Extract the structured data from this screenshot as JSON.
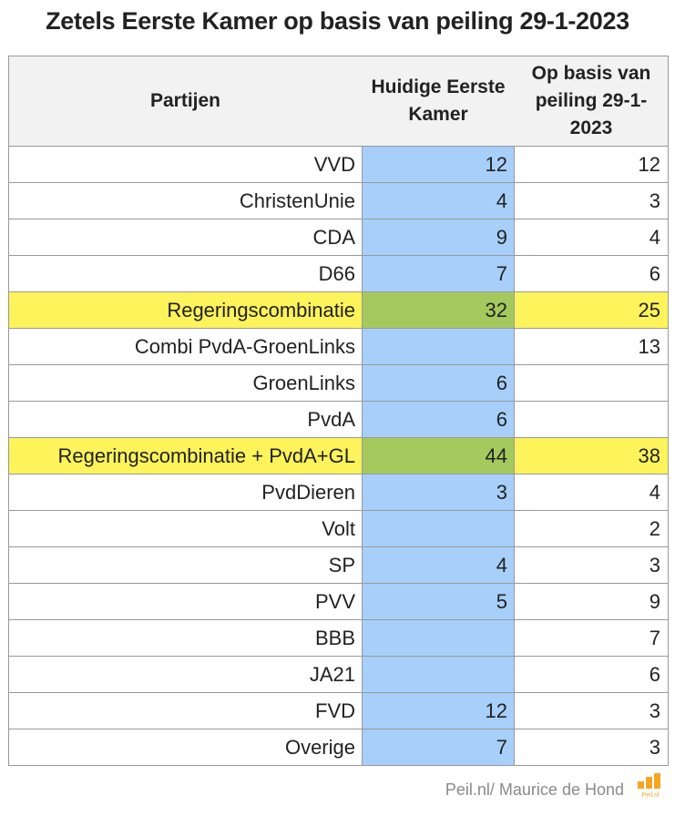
{
  "title": "Zetels Eerste Kamer op basis van peiling 29-1-2023",
  "colors": {
    "current_column": "#a7cffa",
    "highlight_row": "#fdf35a",
    "highlight_current": "#a6c95e",
    "logo_orange": "#f5a623"
  },
  "footer": {
    "credit": "Peil.nl/ Maurice de Hond",
    "logo_text": "Peil.nl"
  },
  "chart_data": {
    "type": "table",
    "title": "Zetels Eerste Kamer op basis van peiling 29-1-2023",
    "columns": [
      "Partijen",
      "Huidige Eerste Kamer",
      "Op basis van peiling 29-1-2023"
    ],
    "rows": [
      {
        "party": "VVD",
        "current": "12",
        "poll": "12",
        "highlight": false
      },
      {
        "party": "ChristenUnie",
        "current": "4",
        "poll": "3",
        "highlight": false
      },
      {
        "party": "CDA",
        "current": "9",
        "poll": "4",
        "highlight": false
      },
      {
        "party": "D66",
        "current": "7",
        "poll": "6",
        "highlight": false
      },
      {
        "party": "Regeringscombinatie",
        "current": "32",
        "poll": "25",
        "highlight": true
      },
      {
        "party": "Combi PvdA-GroenLinks",
        "current": "",
        "poll": "13",
        "highlight": false
      },
      {
        "party": "GroenLinks",
        "current": "6",
        "poll": "",
        "highlight": false
      },
      {
        "party": "PvdA",
        "current": "6",
        "poll": "",
        "highlight": false
      },
      {
        "party": "Regeringscombinatie + PvdA+GL",
        "current": "44",
        "poll": "38",
        "highlight": true
      },
      {
        "party": "PvdDieren",
        "current": "3",
        "poll": "4",
        "highlight": false
      },
      {
        "party": "Volt",
        "current": "",
        "poll": "2",
        "highlight": false
      },
      {
        "party": "SP",
        "current": "4",
        "poll": "3",
        "highlight": false
      },
      {
        "party": "PVV",
        "current": "5",
        "poll": "9",
        "highlight": false
      },
      {
        "party": "BBB",
        "current": "",
        "poll": "7",
        "highlight": false
      },
      {
        "party": "JA21",
        "current": "",
        "poll": "6",
        "highlight": false
      },
      {
        "party": "FVD",
        "current": "12",
        "poll": "3",
        "highlight": false
      },
      {
        "party": "Overige",
        "current": "7",
        "poll": "3",
        "highlight": false
      }
    ]
  }
}
